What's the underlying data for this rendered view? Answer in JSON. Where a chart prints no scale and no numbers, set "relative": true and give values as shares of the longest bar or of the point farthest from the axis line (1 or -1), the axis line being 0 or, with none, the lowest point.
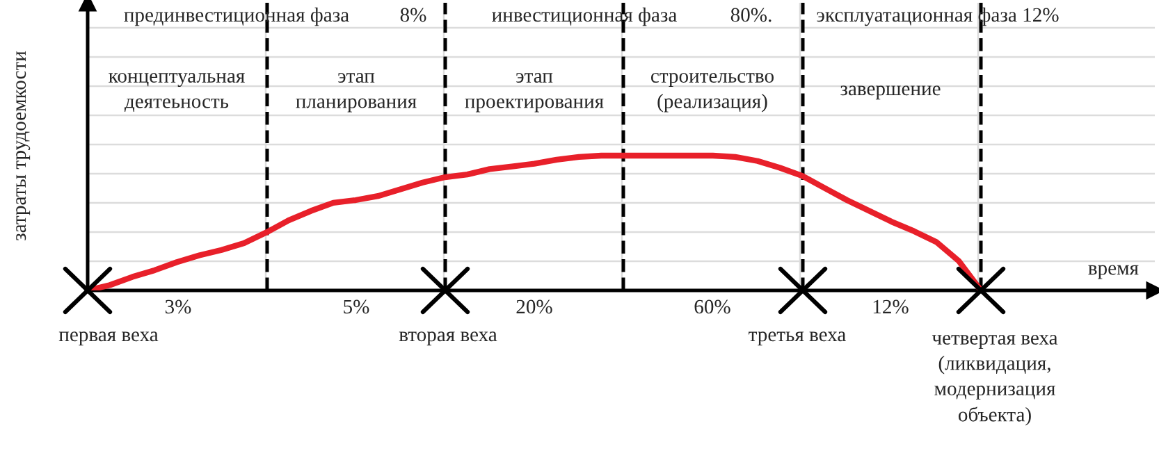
{
  "chart_data": {
    "type": "line",
    "relative": true,
    "ylabel": "затраты трудоемкости",
    "xlabel": "время",
    "categories": [
      null,
      null,
      null,
      null,
      null,
      null,
      null,
      null,
      null,
      null,
      null,
      null,
      null,
      null,
      null,
      null,
      null,
      null,
      null,
      null,
      null,
      null,
      null,
      null,
      null,
      null,
      null,
      null,
      null,
      null,
      null,
      null,
      null,
      null,
      null,
      null,
      null,
      null,
      null,
      null,
      null
    ],
    "series": [
      {
        "color": "#e8202a",
        "values": [
          0,
          0.04,
          0.1,
          0.15,
          0.21,
          0.26,
          0.3,
          0.35,
          0.43,
          0.52,
          0.59,
          0.65,
          0.67,
          0.7,
          0.75,
          0.8,
          0.84,
          0.86,
          0.9,
          0.92,
          0.94,
          0.97,
          0.99,
          1,
          1,
          1,
          1,
          1,
          1,
          0.99,
          0.96,
          0.91,
          0.85,
          0.76,
          0.67,
          0.59,
          0.51,
          0.44,
          0.36,
          0.22,
          0
        ]
      }
    ],
    "grid": true,
    "annotations": [
      "прединвестиционная фаза",
      "8%",
      "инвестиционная фаза",
      "80%.",
      "эксплуатационная фаза 12%",
      "концептуальная\nдеятеьность",
      "этап\nпланирования",
      "этап\nпроектирования",
      "строительство\n(реализация)",
      "завершение",
      "3%",
      "5%",
      "20%",
      "60%",
      "12%",
      "первая веха",
      "вторая веха",
      "третья веха",
      "четвертая веха\n(ликвидация,\nмодернизация\nобъекта)"
    ]
  }
}
